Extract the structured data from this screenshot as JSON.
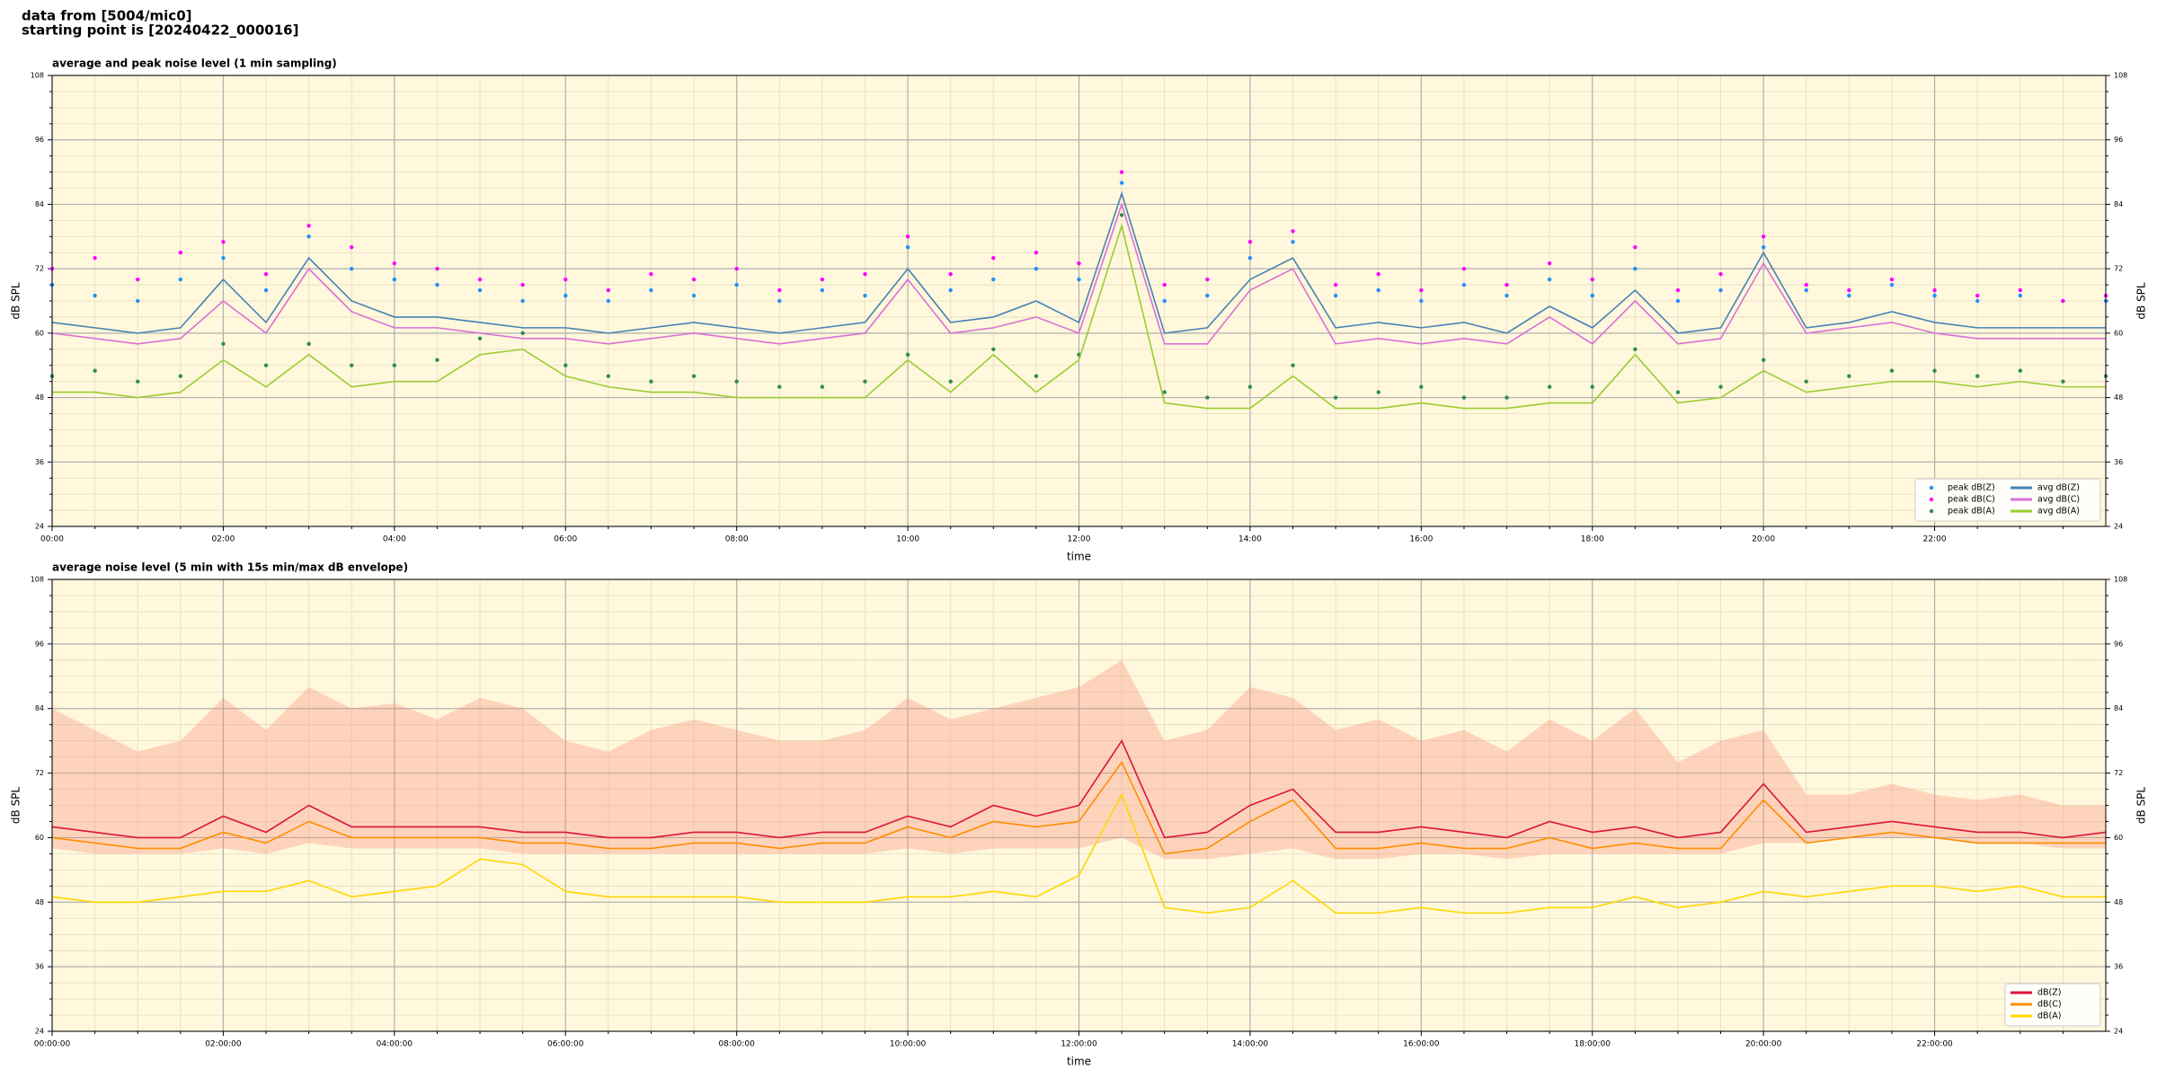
{
  "header": [
    "data from [5004/mic0]",
    "starting point is [20240422_000016]"
  ],
  "chart_data": [
    {
      "type": "line",
      "title": "average and peak noise level (1 min sampling)",
      "x_label": "time",
      "y_label": "dB SPL",
      "xlim": [
        0,
        24
      ],
      "ylim": [
        24,
        108
      ],
      "xticks": [
        {
          "value": 0,
          "label": "00:00"
        },
        {
          "value": 2,
          "label": "02:00"
        },
        {
          "value": 4,
          "label": "04:00"
        },
        {
          "value": 6,
          "label": "06:00"
        },
        {
          "value": 8,
          "label": "08:00"
        },
        {
          "value": 10,
          "label": "10:00"
        },
        {
          "value": 12,
          "label": "12:00"
        },
        {
          "value": 14,
          "label": "14:00"
        },
        {
          "value": 16,
          "label": "16:00"
        },
        {
          "value": 18,
          "label": "18:00"
        },
        {
          "value": 20,
          "label": "20:00"
        },
        {
          "value": 22,
          "label": "22:00"
        }
      ],
      "xminorticks": [
        0.5,
        1,
        1.5,
        2.5,
        3,
        3.5,
        4.5,
        5,
        5.5,
        6.5,
        7,
        7.5,
        8.5,
        9,
        9.5,
        10.5,
        11,
        11.5,
        12.5,
        13,
        13.5,
        14.5,
        15,
        15.5,
        16.5,
        17,
        17.5,
        18.5,
        19,
        19.5,
        20.5,
        21,
        21.5,
        22.5,
        23,
        23.5
      ],
      "yticks": [
        24,
        36,
        48,
        60,
        72,
        84,
        96,
        108
      ],
      "yminorticks": [
        27,
        30,
        33,
        39,
        42,
        45,
        51,
        54,
        57,
        63,
        66,
        69,
        75,
        78,
        81,
        87,
        90,
        93,
        99,
        102,
        105
      ],
      "grid": true,
      "background": "#fff8dc",
      "legend": "lower right",
      "legend_columns": 2,
      "x": [
        0,
        0.5,
        1,
        1.5,
        2,
        2.5,
        3,
        3.5,
        4,
        4.5,
        5,
        5.5,
        6,
        6.5,
        7,
        7.5,
        8,
        8.5,
        9,
        9.5,
        10,
        10.5,
        11,
        11.5,
        12,
        12.5,
        13,
        13.5,
        14,
        14.5,
        15,
        15.5,
        16,
        16.5,
        17,
        17.5,
        18,
        18.5,
        19,
        19.5,
        20,
        20.5,
        21,
        21.5,
        22,
        22.5,
        23,
        23.5,
        24
      ],
      "series": [
        {
          "name": "peak dB(Z)",
          "style": "dots",
          "color": "#1e90ff",
          "values": [
            69,
            67,
            66,
            70,
            74,
            68,
            78,
            72,
            70,
            69,
            68,
            66,
            67,
            66,
            68,
            67,
            69,
            66,
            68,
            67,
            76,
            68,
            70,
            72,
            70,
            88,
            66,
            67,
            74,
            77,
            67,
            68,
            66,
            69,
            67,
            70,
            67,
            72,
            66,
            68,
            76,
            68,
            67,
            69,
            67,
            66,
            67,
            66,
            66
          ]
        },
        {
          "name": "peak dB(C)",
          "style": "dots",
          "color": "#ff00ff",
          "values": [
            72,
            74,
            70,
            75,
            77,
            71,
            80,
            76,
            73,
            72,
            70,
            69,
            70,
            68,
            71,
            70,
            72,
            68,
            70,
            71,
            78,
            71,
            74,
            75,
            73,
            90,
            69,
            70,
            77,
            79,
            69,
            71,
            68,
            72,
            69,
            73,
            70,
            76,
            68,
            71,
            78,
            69,
            68,
            70,
            68,
            67,
            68,
            66,
            67
          ]
        },
        {
          "name": "peak dB(A)",
          "style": "dots",
          "color": "#2e8b57",
          "values": [
            52,
            53,
            51,
            52,
            58,
            54,
            58,
            54,
            54,
            55,
            59,
            60,
            54,
            52,
            51,
            52,
            51,
            50,
            50,
            51,
            56,
            51,
            57,
            52,
            56,
            82,
            49,
            48,
            50,
            54,
            48,
            49,
            50,
            48,
            48,
            50,
            50,
            57,
            49,
            50,
            55,
            51,
            52,
            53,
            53,
            52,
            53,
            51,
            52
          ]
        },
        {
          "name": "avg dB(Z)",
          "style": "line",
          "color": "#4682b4",
          "values": [
            62,
            61,
            60,
            61,
            70,
            62,
            74,
            66,
            63,
            63,
            62,
            61,
            61,
            60,
            61,
            62,
            61,
            60,
            61,
            62,
            72,
            62,
            63,
            66,
            62,
            86,
            60,
            61,
            70,
            74,
            61,
            62,
            61,
            62,
            60,
            65,
            61,
            68,
            60,
            61,
            75,
            61,
            62,
            64,
            62,
            61,
            61,
            61,
            61
          ]
        },
        {
          "name": "avg dB(C)",
          "style": "line",
          "color": "#da70d6",
          "values": [
            60,
            59,
            58,
            59,
            66,
            60,
            72,
            64,
            61,
            61,
            60,
            59,
            59,
            58,
            59,
            60,
            59,
            58,
            59,
            60,
            70,
            60,
            61,
            63,
            60,
            84,
            58,
            58,
            68,
            72,
            58,
            59,
            58,
            59,
            58,
            63,
            58,
            66,
            58,
            59,
            73,
            60,
            61,
            62,
            60,
            59,
            59,
            59,
            59
          ]
        },
        {
          "name": "avg dB(A)",
          "style": "line",
          "color": "#9acd32",
          "values": [
            49,
            49,
            48,
            49,
            55,
            50,
            56,
            50,
            51,
            51,
            56,
            57,
            52,
            50,
            49,
            49,
            48,
            48,
            48,
            48,
            55,
            49,
            56,
            49,
            55,
            80,
            47,
            46,
            46,
            52,
            46,
            46,
            47,
            46,
            46,
            47,
            47,
            56,
            47,
            48,
            53,
            49,
            50,
            51,
            51,
            50,
            51,
            50,
            50
          ]
        }
      ]
    },
    {
      "type": "line",
      "title": "average noise level (5 min with 15s min/max dB envelope)",
      "x_label": "time",
      "y_label": "dB SPL",
      "xlim": [
        0,
        24
      ],
      "ylim": [
        24,
        108
      ],
      "xticks": [
        {
          "value": 0,
          "label": "00:00:00"
        },
        {
          "value": 2,
          "label": "02:00:00"
        },
        {
          "value": 4,
          "label": "04:00:00"
        },
        {
          "value": 6,
          "label": "06:00:00"
        },
        {
          "value": 8,
          "label": "08:00:00"
        },
        {
          "value": 10,
          "label": "10:00:00"
        },
        {
          "value": 12,
          "label": "12:00:00"
        },
        {
          "value": 14,
          "label": "14:00:00"
        },
        {
          "value": 16,
          "label": "16:00:00"
        },
        {
          "value": 18,
          "label": "18:00:00"
        },
        {
          "value": 20,
          "label": "20:00:00"
        },
        {
          "value": 22,
          "label": "22:00:00"
        }
      ],
      "xminorticks": [
        0.5,
        1,
        1.5,
        2.5,
        3,
        3.5,
        4.5,
        5,
        5.5,
        6.5,
        7,
        7.5,
        8.5,
        9,
        9.5,
        10.5,
        11,
        11.5,
        12.5,
        13,
        13.5,
        14.5,
        15,
        15.5,
        16.5,
        17,
        17.5,
        18.5,
        19,
        19.5,
        20.5,
        21,
        21.5,
        22.5,
        23,
        23.5
      ],
      "yticks": [
        24,
        36,
        48,
        60,
        72,
        84,
        96,
        108
      ],
      "yminorticks": [
        27,
        30,
        33,
        39,
        42,
        45,
        51,
        54,
        57,
        63,
        66,
        69,
        75,
        78,
        81,
        87,
        90,
        93,
        99,
        102,
        105
      ],
      "grid": true,
      "background": "#fff8dc",
      "legend": "lower right",
      "legend_columns": 1,
      "x": [
        0,
        0.5,
        1,
        1.5,
        2,
        2.5,
        3,
        3.5,
        4,
        4.5,
        5,
        5.5,
        6,
        6.5,
        7,
        7.5,
        8,
        8.5,
        9,
        9.5,
        10,
        10.5,
        11,
        11.5,
        12,
        12.5,
        13,
        13.5,
        14,
        14.5,
        15,
        15.5,
        16,
        16.5,
        17,
        17.5,
        18,
        18.5,
        19,
        19.5,
        20,
        20.5,
        21,
        21.5,
        22,
        22.5,
        23,
        23.5,
        24
      ],
      "envelope": {
        "color": "#fa8072",
        "upper": [
          84,
          80,
          76,
          78,
          86,
          80,
          88,
          84,
          85,
          82,
          86,
          84,
          78,
          76,
          80,
          82,
          80,
          78,
          78,
          80,
          86,
          82,
          84,
          86,
          88,
          93,
          78,
          80,
          88,
          86,
          80,
          82,
          78,
          80,
          76,
          82,
          78,
          84,
          74,
          78,
          80,
          68,
          68,
          70,
          68,
          67,
          68,
          66,
          66
        ],
        "lower": [
          58,
          57,
          57,
          57,
          58,
          57,
          59,
          58,
          58,
          58,
          58,
          57,
          57,
          57,
          57,
          57,
          57,
          57,
          57,
          57,
          58,
          57,
          58,
          58,
          58,
          60,
          56,
          56,
          57,
          58,
          56,
          56,
          57,
          57,
          56,
          57,
          57,
          57,
          57,
          57,
          59,
          59,
          60,
          60,
          60,
          59,
          59,
          58,
          58
        ]
      },
      "series": [
        {
          "name": "dB(Z)",
          "style": "line",
          "color": "#dc143c",
          "values": [
            62,
            61,
            60,
            60,
            64,
            61,
            66,
            62,
            62,
            62,
            62,
            61,
            61,
            60,
            60,
            61,
            61,
            60,
            61,
            61,
            64,
            62,
            66,
            64,
            66,
            78,
            60,
            61,
            66,
            69,
            61,
            61,
            62,
            61,
            60,
            63,
            61,
            62,
            60,
            61,
            70,
            61,
            62,
            63,
            62,
            61,
            61,
            60,
            61
          ]
        },
        {
          "name": "dB(C)",
          "style": "line",
          "color": "#ff8c00",
          "values": [
            60,
            59,
            58,
            58,
            61,
            59,
            63,
            60,
            60,
            60,
            60,
            59,
            59,
            58,
            58,
            59,
            59,
            58,
            59,
            59,
            62,
            60,
            63,
            62,
            63,
            74,
            57,
            58,
            63,
            67,
            58,
            58,
            59,
            58,
            58,
            60,
            58,
            59,
            58,
            58,
            67,
            59,
            60,
            61,
            60,
            59,
            59,
            59,
            59
          ]
        },
        {
          "name": "dB(A)",
          "style": "line",
          "color": "#ffd700",
          "values": [
            49,
            48,
            48,
            49,
            50,
            50,
            52,
            49,
            50,
            51,
            56,
            55,
            50,
            49,
            49,
            49,
            49,
            48,
            48,
            48,
            49,
            49,
            50,
            49,
            53,
            68,
            47,
            46,
            47,
            52,
            46,
            46,
            47,
            46,
            46,
            47,
            47,
            49,
            47,
            48,
            50,
            49,
            50,
            51,
            51,
            50,
            51,
            49,
            49
          ]
        }
      ]
    }
  ]
}
